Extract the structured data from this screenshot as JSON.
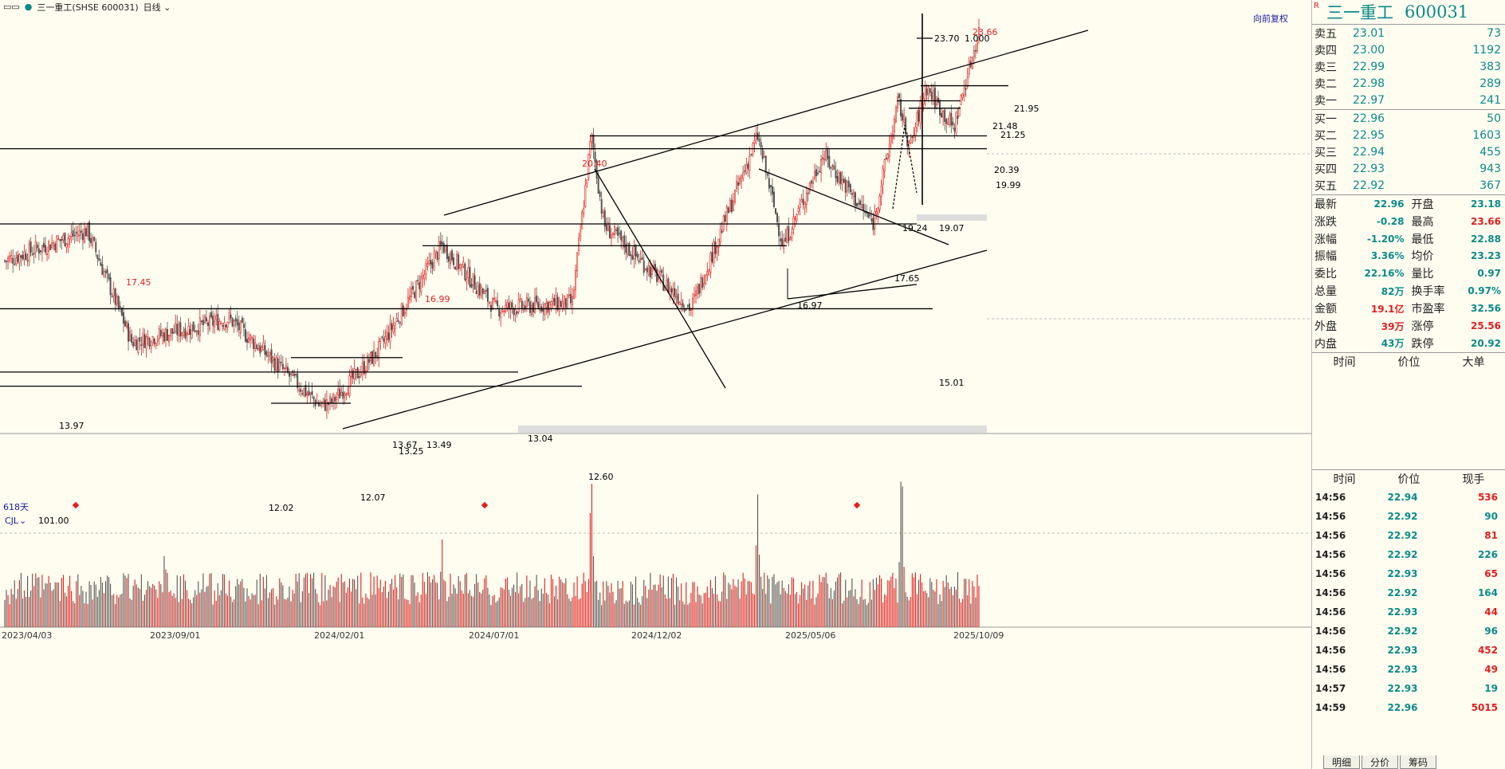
{
  "topbar": {
    "window_icon": "▭▭",
    "stock": "三一重工(SHSE 600031)",
    "period": "日线"
  },
  "chart_labels": {
    "days_count": "618天",
    "restore": "向前复权",
    "volume_indicator": "CJL",
    "volume_value": "101.00",
    "x_ticks": [
      "2023/04/03",
      "2023/09/01",
      "2024/02/01",
      "2024/07/01",
      "2024/12/02",
      "2025/05/06",
      "2025/10/09"
    ],
    "price_levels": [
      "23.70",
      "1.000",
      "21.95",
      "21.48",
      "21.25",
      "20.39",
      "19.99",
      "19.24",
      "19.07",
      "17.65",
      "16.97",
      "15.01",
      "13.67",
      "13.49",
      "13.25",
      "13.04",
      "12.60",
      "12.07",
      "12.02",
      "13.97"
    ],
    "red_peak_labels": [
      "17.45",
      "20.40",
      "16.99",
      "23.66"
    ]
  },
  "chart_data": {
    "type": "candlestick",
    "description_period": "daily",
    "x_range": [
      "2023/04/03",
      "2025/10/09"
    ],
    "ylim": [
      11.5,
      23.7
    ],
    "highs_lows": {
      "high": 23.66,
      "low": 12.02
    },
    "key_points": [
      {
        "date": "2023/04/03",
        "value": 16.5
      },
      {
        "date": "2023/06/20",
        "value": 17.45
      },
      {
        "date": "2023/08/01",
        "value": 13.97
      },
      {
        "date": "2023/11/01",
        "value": 14.7
      },
      {
        "date": "2024/01/25",
        "value": 12.02
      },
      {
        "date": "2024/02/05",
        "value": 12.07
      },
      {
        "date": "2024/03/20",
        "value": 13.67
      },
      {
        "date": "2024/05/20",
        "value": 16.99
      },
      {
        "date": "2024/07/10",
        "value": 15.01
      },
      {
        "date": "2024/09/20",
        "value": 15.2
      },
      {
        "date": "2024/10/08",
        "value": 20.4
      },
      {
        "date": "2024/10/20",
        "value": 17.6
      },
      {
        "date": "2025/01/10",
        "value": 15.01
      },
      {
        "date": "2025/03/14",
        "value": 20.39
      },
      {
        "date": "2025/04/07",
        "value": 16.97
      },
      {
        "date": "2025/05/15",
        "value": 19.8
      },
      {
        "date": "2025/07/01",
        "value": 17.65
      },
      {
        "date": "2025/07/25",
        "value": 21.48
      },
      {
        "date": "2025/08/05",
        "value": 19.99
      },
      {
        "date": "2025/08/20",
        "value": 21.95
      },
      {
        "date": "2025/09/15",
        "value": 20.6
      },
      {
        "date": "2025/10/09",
        "value": 23.66
      }
    ],
    "volume_spikes_relative": [
      {
        "date": "2023/09/01",
        "value": 0.45
      },
      {
        "date": "2024/05/20",
        "value": 0.5
      },
      {
        "date": "2024/10/08",
        "value": 0.9
      },
      {
        "date": "2025/03/14",
        "value": 0.75
      },
      {
        "date": "2025/07/28",
        "value": 1.0
      }
    ],
    "colors": {
      "up": "#e02020",
      "down": "#555555",
      "line": "#000000",
      "ma_dotted": "#000000"
    }
  },
  "right_panel": {
    "market_flag": "R",
    "name": "三一重工",
    "code": "600031",
    "asks": [
      {
        "label": "卖五",
        "price": "23.01",
        "vol": "73"
      },
      {
        "label": "卖四",
        "price": "23.00",
        "vol": "1192"
      },
      {
        "label": "卖三",
        "price": "22.99",
        "vol": "383"
      },
      {
        "label": "卖二",
        "price": "22.98",
        "vol": "289"
      },
      {
        "label": "卖一",
        "price": "22.97",
        "vol": "241"
      }
    ],
    "bids": [
      {
        "label": "买一",
        "price": "22.96",
        "vol": "50"
      },
      {
        "label": "买二",
        "price": "22.95",
        "vol": "1603"
      },
      {
        "label": "买三",
        "price": "22.94",
        "vol": "455"
      },
      {
        "label": "买四",
        "price": "22.93",
        "vol": "943"
      },
      {
        "label": "买五",
        "price": "22.92",
        "vol": "367"
      }
    ],
    "quote": [
      {
        "k": "最新",
        "v": "22.96",
        "c": "teal"
      },
      {
        "k": "开盘",
        "v": "23.18",
        "c": "teal"
      },
      {
        "k": "涨跌",
        "v": "-0.28",
        "c": "teal"
      },
      {
        "k": "最高",
        "v": "23.66",
        "c": "red"
      },
      {
        "k": "涨幅",
        "v": "-1.20%",
        "c": "teal"
      },
      {
        "k": "最低",
        "v": "22.88",
        "c": "teal"
      },
      {
        "k": "振幅",
        "v": "3.36%",
        "c": "teal"
      },
      {
        "k": "均价",
        "v": "23.23",
        "c": "teal"
      },
      {
        "k": "委比",
        "v": "22.16%",
        "c": "teal"
      },
      {
        "k": "量比",
        "v": "0.97",
        "c": "teal"
      },
      {
        "k": "总量",
        "v": "82万",
        "c": "teal"
      },
      {
        "k": "换手率",
        "v": "0.97%",
        "c": "teal"
      },
      {
        "k": "金额",
        "v": "19.1亿",
        "c": "red"
      },
      {
        "k": "市盈率",
        "v": "32.56",
        "c": "teal"
      },
      {
        "k": "外盘",
        "v": "39万",
        "c": "red"
      },
      {
        "k": "涨停",
        "v": "25.56",
        "c": "red"
      },
      {
        "k": "内盘",
        "v": "43万",
        "c": "teal"
      },
      {
        "k": "跌停",
        "v": "20.92",
        "c": "teal"
      }
    ],
    "big_order_header": [
      "时间",
      "价位",
      "大单"
    ],
    "ticks_header": [
      "时间",
      "价位",
      "现手"
    ],
    "ticks": [
      {
        "t": "14:56",
        "p": "22.94",
        "v": "536",
        "c": "red"
      },
      {
        "t": "14:56",
        "p": "22.92",
        "v": "90",
        "c": "teal"
      },
      {
        "t": "14:56",
        "p": "22.92",
        "v": "81",
        "c": "red"
      },
      {
        "t": "14:56",
        "p": "22.92",
        "v": "226",
        "c": "teal"
      },
      {
        "t": "14:56",
        "p": "22.93",
        "v": "65",
        "c": "red"
      },
      {
        "t": "14:56",
        "p": "22.92",
        "v": "164",
        "c": "teal"
      },
      {
        "t": "14:56",
        "p": "22.93",
        "v": "44",
        "c": "red"
      },
      {
        "t": "14:56",
        "p": "22.92",
        "v": "96",
        "c": "teal"
      },
      {
        "t": "14:56",
        "p": "22.93",
        "v": "452",
        "c": "red"
      },
      {
        "t": "14:56",
        "p": "22.93",
        "v": "49",
        "c": "red"
      },
      {
        "t": "14:57",
        "p": "22.93",
        "v": "19",
        "c": "teal"
      },
      {
        "t": "14:59",
        "p": "22.96",
        "v": "5015",
        "c": "red"
      }
    ],
    "tabs": [
      "明细",
      "分价",
      "筹码"
    ]
  }
}
